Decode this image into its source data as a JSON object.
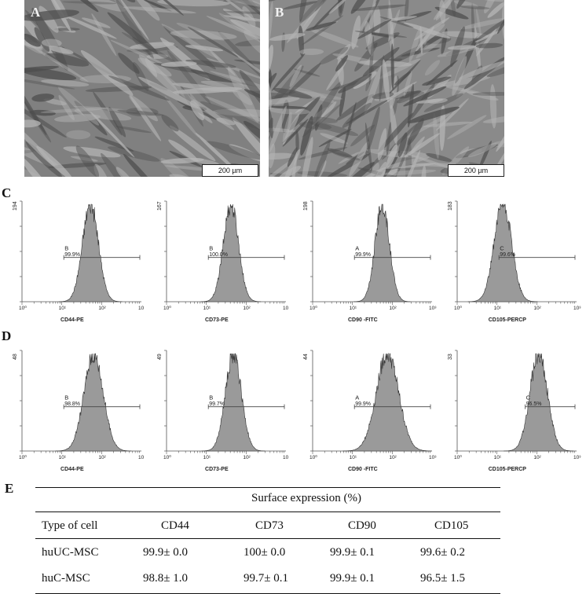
{
  "micrographs": [
    {
      "label": "A",
      "scale": "200 µm"
    },
    {
      "label": "B",
      "scale": "200 µm"
    }
  ],
  "chart_data": [
    {
      "type": "histogram",
      "panel": "C",
      "xlabel": "CD44-PE",
      "ymax_label": "194",
      "gate_letter": "B",
      "gate_pct": "99.9%",
      "x_ticks": [
        "10⁰",
        "10¹",
        "10²",
        "10"
      ],
      "peak_log": 1.72,
      "width_log": 0.2
    },
    {
      "type": "histogram",
      "panel": "C",
      "xlabel": "CD73-PE",
      "ymax_label": "167",
      "gate_letter": "B",
      "gate_pct": "100.0%",
      "x_ticks": [
        "10⁰",
        "10¹",
        "10²",
        "10"
      ],
      "peak_log": 1.62,
      "width_log": 0.19
    },
    {
      "type": "histogram",
      "panel": "C",
      "xlabel": "CD90 -FITC",
      "ymax_label": "198",
      "gate_letter": "A",
      "gate_pct": "99.9%",
      "x_ticks": [
        "10⁰",
        "10¹",
        "10²",
        "10³"
      ],
      "peak_log": 1.75,
      "width_log": 0.18
    },
    {
      "type": "histogram",
      "panel": "C",
      "xlabel": "CD105-PERCP",
      "ymax_label": "183",
      "gate_letter": "C",
      "gate_pct": "99.6%",
      "x_ticks": [
        "10⁰",
        "10¹",
        "10²",
        "10³"
      ],
      "peak_log": 1.15,
      "width_log": 0.22
    },
    {
      "type": "histogram",
      "panel": "D",
      "xlabel": "CD44-PE",
      "ymax_label": "48",
      "gate_letter": "B",
      "gate_pct": "98.8%",
      "x_ticks": [
        "10⁰",
        "10¹",
        "10²",
        "10"
      ],
      "peak_log": 1.8,
      "width_log": 0.24
    },
    {
      "type": "histogram",
      "panel": "D",
      "xlabel": "CD73-PE",
      "ymax_label": "49",
      "gate_letter": "B",
      "gate_pct": "99.7%",
      "x_ticks": [
        "10⁰",
        "10¹",
        "10²",
        "10"
      ],
      "peak_log": 1.68,
      "width_log": 0.2
    },
    {
      "type": "histogram",
      "panel": "D",
      "xlabel": "CD90 -FITC",
      "ymax_label": "44",
      "gate_letter": "A",
      "gate_pct": "99.9%",
      "x_ticks": [
        "10⁰",
        "10¹",
        "10²",
        "10³"
      ],
      "peak_log": 1.88,
      "width_log": 0.28
    },
    {
      "type": "histogram",
      "panel": "D",
      "xlabel": "CD105-PERCP",
      "ymax_label": "33",
      "gate_letter": "C",
      "gate_pct": "96.5%",
      "x_ticks": [
        "10⁰",
        "10¹",
        "10²",
        "10³"
      ],
      "peak_log": 2.05,
      "width_log": 0.22
    }
  ],
  "panel_labels": {
    "C": "C",
    "D": "D",
    "E": "E"
  },
  "table": {
    "header_span": "Surface expression (%)",
    "columns": [
      "Type of cell",
      "CD44",
      "CD73",
      "CD90",
      "CD105"
    ],
    "rows": [
      {
        "type": "huUC-MSC",
        "cd44": "99.9± 0.0",
        "cd73": "100± 0.0",
        "cd90": "99.9± 0.1",
        "cd105": "99.6± 0.2"
      },
      {
        "type": "huC-MSC",
        "cd44": "98.8± 1.0",
        "cd73": "99.7± 0.1",
        "cd90": "99.9± 0.1",
        "cd105": "96.5± 1.5"
      }
    ]
  }
}
